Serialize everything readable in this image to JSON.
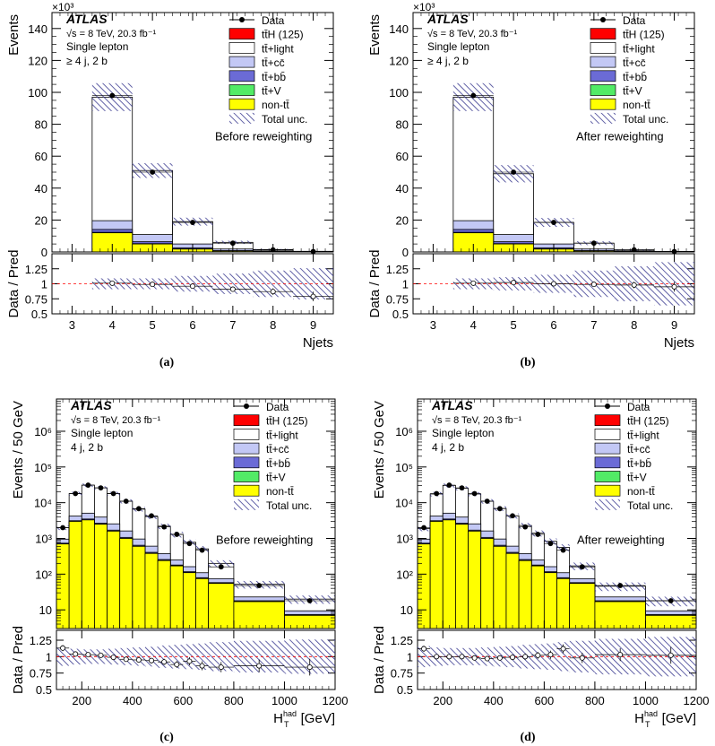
{
  "legend": {
    "entries": [
      {
        "key": "data",
        "label": "Data",
        "color": "#000000"
      },
      {
        "key": "tth",
        "label": "tt̄H (125)",
        "color": "#ff0000"
      },
      {
        "key": "light",
        "label": "tt̄+light",
        "color": "#ffffff"
      },
      {
        "key": "cc",
        "label": "tt̄+cc̄",
        "color": "#c3c8f5"
      },
      {
        "key": "bb",
        "label": "tt̄+bb̄",
        "color": "#6b6bd6"
      },
      {
        "key": "ttv",
        "label": "tt̄+V",
        "color": "#52eb66"
      },
      {
        "key": "nontt",
        "label": "non-tt̄",
        "color": "#ffff00"
      },
      {
        "key": "unc",
        "label": "Total unc.",
        "color": "#3a3a90"
      }
    ]
  },
  "chart_data": [
    {
      "type": "bar",
      "panel_label": "(a)",
      "atlas": "ATLAS",
      "energy": "√s = 8 TeV, 20.3 fb⁻¹",
      "channel": "Single lepton",
      "region": "≥ 4 j,  2 b",
      "annotation": "Before reweighting",
      "xlabel": "Njets",
      "ylabel": "Events",
      "multiplier": "×10³",
      "ratio_ylabel": "Data / Pred",
      "xlim": [
        2.5,
        9.5
      ],
      "ylim": [
        0,
        150
      ],
      "log": false,
      "x_ticks": [
        3,
        4,
        5,
        6,
        7,
        8,
        9
      ],
      "y_ticks": [
        0,
        20,
        40,
        60,
        80,
        100,
        120,
        140
      ],
      "ratio_ylim": [
        0.5,
        1.5
      ],
      "ratio_ticks": [
        "0.5",
        "0.75",
        "1",
        "1.25"
      ],
      "bins": [
        [
          3.5,
          4.5
        ],
        [
          4.5,
          5.5
        ],
        [
          5.5,
          6.5
        ],
        [
          6.5,
          7.5
        ],
        [
          7.5,
          8.5
        ],
        [
          8.5,
          9.5
        ]
      ],
      "total": [
        97,
        51,
        19,
        6,
        1.5,
        0.4
      ],
      "nontt": [
        12,
        5,
        1.8,
        0.6,
        0.2,
        0.05
      ],
      "ttv": [
        0.3,
        0.2,
        0.1,
        0.05,
        0.02,
        0.01
      ],
      "bb": [
        1.8,
        1.2,
        0.6,
        0.2,
        0.07,
        0.02
      ],
      "cc": [
        5.5,
        4.5,
        2.5,
        1.0,
        0.4,
        0.1
      ],
      "data": [
        98,
        50,
        18.5,
        5.5,
        1.3,
        0.3
      ],
      "unc_frac": [
        0.09,
        0.09,
        0.13,
        0.17,
        0.22,
        0.26
      ],
      "ratio": [
        1.01,
        0.99,
        0.96,
        0.91,
        0.87,
        0.79
      ],
      "ratio_err": [
        0.005,
        0.006,
        0.008,
        0.012,
        0.025,
        0.05
      ]
    },
    {
      "type": "bar",
      "panel_label": "(b)",
      "atlas": "ATLAS",
      "energy": "√s = 8 TeV, 20.3 fb⁻¹",
      "channel": "Single lepton",
      "region": "≥ 4 j,  2 b",
      "annotation": "After reweighting",
      "xlabel": "Njets",
      "ylabel": "Events",
      "multiplier": "×10³",
      "ratio_ylabel": "Data / Pred",
      "xlim": [
        2.5,
        9.5
      ],
      "ylim": [
        0,
        150
      ],
      "log": false,
      "x_ticks": [
        3,
        4,
        5,
        6,
        7,
        8,
        9
      ],
      "y_ticks": [
        0,
        20,
        40,
        60,
        80,
        100,
        120,
        140
      ],
      "ratio_ylim": [
        0.5,
        1.5
      ],
      "ratio_ticks": [
        "0.5",
        "0.75",
        "1",
        "1.25"
      ],
      "bins": [
        [
          3.5,
          4.5
        ],
        [
          4.5,
          5.5
        ],
        [
          5.5,
          6.5
        ],
        [
          6.5,
          7.5
        ],
        [
          7.5,
          8.5
        ],
        [
          8.5,
          9.5
        ]
      ],
      "total": [
        97,
        49,
        18.5,
        5.5,
        1.3,
        0.3
      ],
      "nontt": [
        12,
        5,
        1.8,
        0.6,
        0.2,
        0.05
      ],
      "ttv": [
        0.3,
        0.2,
        0.1,
        0.05,
        0.02,
        0.01
      ],
      "bb": [
        1.8,
        1.2,
        0.6,
        0.2,
        0.07,
        0.02
      ],
      "cc": [
        5.5,
        4.5,
        2.5,
        1.0,
        0.4,
        0.1
      ],
      "data": [
        98,
        50,
        18.5,
        5.5,
        1.3,
        0.3
      ],
      "unc_frac": [
        0.09,
        0.11,
        0.15,
        0.22,
        0.29,
        0.36
      ],
      "ratio": [
        1.01,
        1.02,
        1.0,
        0.99,
        0.98,
        0.95
      ],
      "ratio_err": [
        0.005,
        0.006,
        0.008,
        0.012,
        0.025,
        0.05
      ]
    },
    {
      "type": "bar",
      "panel_label": "(c)",
      "atlas": "ATLAS",
      "energy": "√s = 8 TeV, 20.3 fb⁻¹",
      "channel": "Single lepton",
      "region": "4 j,  2 b",
      "annotation": "Before reweighting",
      "xlabel": "H_T^had [GeV]",
      "ylabel": "Events / 50 GeV",
      "multiplier": "",
      "ratio_ylabel": "Data / Pred",
      "xlim": [
        100,
        1200
      ],
      "ylim": [
        3,
        8000000
      ],
      "log": true,
      "x_ticks": [
        200,
        400,
        600,
        800,
        1000,
        1200
      ],
      "y_ticks_log": [
        {
          "v": 10,
          "t": "10"
        },
        {
          "v": 100,
          "t": "10²"
        },
        {
          "v": 1000,
          "t": "10³"
        },
        {
          "v": 10000,
          "t": "10⁴"
        },
        {
          "v": 100000,
          "t": "10⁵"
        },
        {
          "v": 1000000,
          "t": "10⁶"
        }
      ],
      "ratio_ylim": [
        0.5,
        1.4
      ],
      "ratio_ticks": [
        "0.5",
        "0.75",
        "1",
        "1.25"
      ],
      "bins": [
        [
          100,
          150
        ],
        [
          150,
          200
        ],
        [
          200,
          250
        ],
        [
          250,
          300
        ],
        [
          300,
          350
        ],
        [
          350,
          400
        ],
        [
          400,
          450
        ],
        [
          450,
          500
        ],
        [
          500,
          550
        ],
        [
          550,
          600
        ],
        [
          600,
          650
        ],
        [
          650,
          700
        ],
        [
          700,
          800
        ],
        [
          800,
          1000
        ],
        [
          1000,
          1200
        ]
      ],
      "total": [
        2000,
        18000,
        31000,
        26000,
        18000,
        11000,
        6600,
        4100,
        2200,
        1300,
        780,
        510,
        200,
        52,
        20
      ],
      "nontt": [
        700,
        3000,
        3300,
        2500,
        1600,
        1000,
        600,
        380,
        240,
        170,
        110,
        75,
        55,
        17,
        7
      ],
      "ttv": [
        5,
        10,
        12,
        9,
        6,
        4,
        3,
        2,
        1.5,
        1,
        0.8,
        0.6,
        0.4,
        0.2,
        0.1
      ],
      "bb": [
        30,
        120,
        180,
        150,
        100,
        65,
        40,
        25,
        15,
        9,
        6,
        4,
        2.5,
        0.8,
        0.3
      ],
      "cc": [
        220,
        1100,
        1600,
        1300,
        850,
        550,
        320,
        200,
        120,
        70,
        45,
        30,
        17,
        5,
        2
      ],
      "data": [
        2000,
        18000,
        31000,
        26000,
        18000,
        11000,
        6800,
        4300,
        2100,
        1300,
        720,
        470,
        160,
        48,
        18
      ],
      "unc_frac": [
        0.14,
        0.12,
        0.11,
        0.11,
        0.12,
        0.13,
        0.14,
        0.15,
        0.17,
        0.18,
        0.19,
        0.2,
        0.22,
        0.24,
        0.26
      ],
      "ratio": [
        1.13,
        1.04,
        1.03,
        1.02,
        0.99,
        0.96,
        0.95,
        0.94,
        0.92,
        0.88,
        0.93,
        0.86,
        0.84,
        0.86,
        0.84
      ],
      "ratio_err": [
        0.02,
        0.01,
        0.008,
        0.008,
        0.008,
        0.01,
        0.012,
        0.015,
        0.02,
        0.025,
        0.035,
        0.04,
        0.05,
        0.07,
        0.1
      ]
    },
    {
      "type": "bar",
      "panel_label": "(d)",
      "atlas": "ATLAS",
      "energy": "√s = 8 TeV, 20.3 fb⁻¹",
      "channel": "Single lepton",
      "region": "4 j,  2 b",
      "annotation": "After reweighting",
      "xlabel": "H_T^had [GeV]",
      "ylabel": "Events / 50 GeV",
      "multiplier": "",
      "ratio_ylabel": "Data / Pred",
      "xlim": [
        100,
        1200
      ],
      "ylim": [
        3,
        8000000
      ],
      "log": true,
      "x_ticks": [
        200,
        400,
        600,
        800,
        1000,
        1200
      ],
      "y_ticks_log": [
        {
          "v": 10,
          "t": "10"
        },
        {
          "v": 100,
          "t": "10²"
        },
        {
          "v": 1000,
          "t": "10³"
        },
        {
          "v": 10000,
          "t": "10⁴"
        },
        {
          "v": 100000,
          "t": "10⁵"
        },
        {
          "v": 1000000,
          "t": "10⁶"
        }
      ],
      "ratio_ylim": [
        0.5,
        1.4
      ],
      "ratio_ticks": [
        "0.5",
        "0.75",
        "1",
        "1.25"
      ],
      "bins": [
        [
          100,
          150
        ],
        [
          150,
          200
        ],
        [
          200,
          250
        ],
        [
          250,
          300
        ],
        [
          300,
          350
        ],
        [
          350,
          400
        ],
        [
          400,
          450
        ],
        [
          450,
          500
        ],
        [
          500,
          550
        ],
        [
          550,
          600
        ],
        [
          600,
          650
        ],
        [
          650,
          700
        ],
        [
          700,
          800
        ],
        [
          800,
          1000
        ],
        [
          1000,
          1200
        ]
      ],
      "total": [
        1900,
        17500,
        30500,
        25500,
        17500,
        11000,
        6900,
        4300,
        2300,
        1400,
        830,
        560,
        170,
        46,
        18
      ],
      "nontt": [
        700,
        3000,
        3300,
        2500,
        1600,
        1000,
        600,
        380,
        240,
        170,
        110,
        75,
        55,
        17,
        7
      ],
      "ttv": [
        5,
        10,
        12,
        9,
        6,
        4,
        3,
        2,
        1.5,
        1,
        0.8,
        0.6,
        0.4,
        0.2,
        0.1
      ],
      "bb": [
        30,
        120,
        180,
        150,
        100,
        65,
        40,
        25,
        15,
        9,
        6,
        4,
        2.5,
        0.8,
        0.3
      ],
      "cc": [
        220,
        1100,
        1600,
        1300,
        850,
        550,
        320,
        200,
        120,
        70,
        45,
        30,
        17,
        5,
        2
      ],
      "data": [
        2000,
        18000,
        31000,
        26000,
        18000,
        11000,
        6800,
        4300,
        2100,
        1300,
        720,
        470,
        160,
        48,
        18
      ],
      "unc_frac": [
        0.16,
        0.14,
        0.13,
        0.13,
        0.13,
        0.14,
        0.15,
        0.16,
        0.18,
        0.19,
        0.2,
        0.22,
        0.24,
        0.27,
        0.3
      ],
      "ratio": [
        1.12,
        1.0,
        1.0,
        1.0,
        0.98,
        0.97,
        0.98,
        0.99,
        1.0,
        1.02,
        1.03,
        1.12,
        0.98,
        1.03,
        1.02
      ],
      "ratio_err": [
        0.02,
        0.01,
        0.008,
        0.008,
        0.008,
        0.01,
        0.012,
        0.015,
        0.02,
        0.025,
        0.035,
        0.04,
        0.05,
        0.07,
        0.1
      ]
    }
  ]
}
